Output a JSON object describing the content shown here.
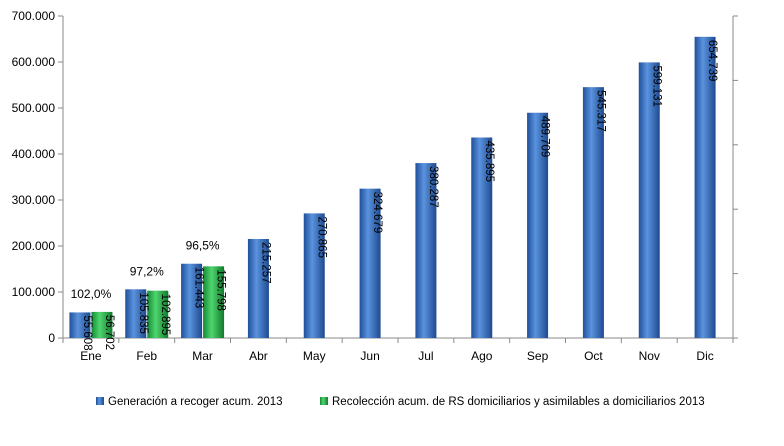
{
  "chart_data": {
    "type": "bar",
    "categories": [
      "Ene",
      "Feb",
      "Mar",
      "Abr",
      "May",
      "Jun",
      "Jul",
      "Ago",
      "Sep",
      "Oct",
      "Nov",
      "Dic"
    ],
    "series": [
      {
        "name": "Generación a recoger acum. 2013",
        "color": "#3a73c4",
        "values": [
          55608,
          105835,
          161443,
          215257,
          270865,
          324679,
          380287,
          435895,
          489709,
          545317,
          599131,
          654739
        ],
        "labels": [
          "55.608",
          "105.835",
          "161.443",
          "215.257",
          "270.865",
          "324.679",
          "380.287",
          "435.895",
          "489.709",
          "545.317",
          "599.131",
          "654.739"
        ]
      },
      {
        "name": "Recolección acum. de RS domiciliarios y asimilables a domiciliarios 2013",
        "color": "#22b24c",
        "values": [
          56702,
          102895,
          155798,
          null,
          null,
          null,
          null,
          null,
          null,
          null,
          null,
          null
        ],
        "labels": [
          "56.702",
          "102.895",
          "155.798",
          null,
          null,
          null,
          null,
          null,
          null,
          null,
          null,
          null
        ]
      }
    ],
    "annotations": [
      {
        "category": "Ene",
        "text": "102,0%"
      },
      {
        "category": "Feb",
        "text": "97,2%"
      },
      {
        "category": "Mar",
        "text": "96,5%"
      }
    ],
    "ylim": [
      0,
      700000
    ],
    "yticks": [
      0,
      100000,
      200000,
      300000,
      400000,
      500000,
      600000,
      700000
    ],
    "ytick_labels": [
      "0",
      "100.000",
      "200.000",
      "300.000",
      "400.000",
      "500.000",
      "600.000",
      "700.000"
    ],
    "title": "",
    "xlabel": "",
    "ylabel": "",
    "legend_position": "bottom",
    "grid": false
  }
}
